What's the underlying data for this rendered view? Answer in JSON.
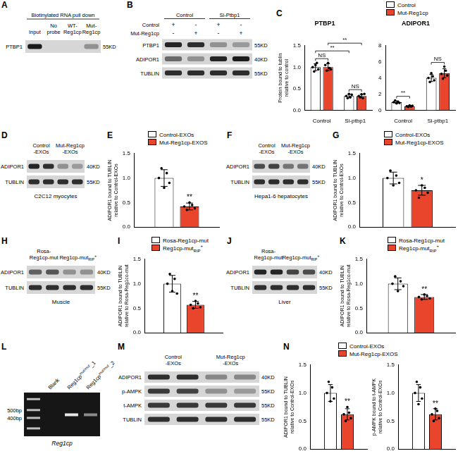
{
  "blots": [
    {
      "panel": "A",
      "title": "Biotinylated RNA pull down",
      "groups": [
        {
          "label": "Input",
          "lanes": 1
        },
        {
          "label": [
            "No",
            "probe"
          ],
          "lanes": 1
        },
        {
          "label": [
            "WT-",
            "Reg1cp"
          ],
          "lanes": 1
        },
        {
          "label": [
            "Mut-",
            "Reg1cp"
          ],
          "lanes": 1
        }
      ],
      "rows": [
        {
          "name": "PTBP1",
          "size": "55KD",
          "signal": [
            0.95,
            0,
            0,
            0.35
          ]
        }
      ]
    },
    {
      "panel": "B",
      "groups": [
        {
          "label": "Control",
          "lanes": 2
        },
        {
          "label": "Si-Ptbp1",
          "lanes": 2
        }
      ],
      "treatments": [
        {
          "name": "Control",
          "marks": [
            "+",
            "-",
            "+",
            "-"
          ]
        },
        {
          "name": "Mut-Reg1cp",
          "marks": [
            "-",
            "+",
            "-",
            "+"
          ]
        }
      ],
      "rows": [
        {
          "name": "PTBP1",
          "size": "55KD",
          "signal": [
            0.9,
            0.85,
            0.35,
            0.3
          ]
        },
        {
          "name": "ADIPOR1",
          "size": "40KD",
          "signal": [
            0.55,
            0.35,
            0.9,
            0.95
          ]
        },
        {
          "name": "TUBLIN",
          "size": "55KD",
          "signal": [
            0.85,
            0.85,
            0.85,
            0.85
          ]
        }
      ]
    },
    {
      "panel": "D",
      "caption": "C2C12 myocytes",
      "groups": [
        {
          "label": [
            "Control",
            "-EXOs"
          ],
          "lanes": 2
        },
        {
          "label": [
            "Mut-Reg1cp",
            "-EXOs"
          ],
          "lanes": 2
        }
      ],
      "rows": [
        {
          "name": "ADIPOR1",
          "size": "40KD",
          "signal": [
            0.9,
            0.85,
            0.35,
            0.3
          ]
        },
        {
          "name": "TUBLIN",
          "size": "55KD",
          "signal": [
            0.85,
            0.85,
            0.85,
            0.85
          ]
        }
      ]
    },
    {
      "panel": "F",
      "caption": "Hepa1-6 hepatocytes",
      "groups": [
        {
          "label": [
            "Control",
            "-EXOs"
          ],
          "lanes": 2
        },
        {
          "label": [
            "Mut-Reg1cp",
            "-EXOs"
          ],
          "lanes": 2
        }
      ],
      "rows": [
        {
          "name": "ADIPOR1",
          "size": "40KD",
          "signal": [
            0.7,
            0.75,
            0.5,
            0.5
          ]
        },
        {
          "name": "TUBLIN",
          "size": "55KD",
          "signal": [
            0.85,
            0.85,
            0.85,
            0.85
          ]
        }
      ]
    },
    {
      "panel": "H",
      "caption": "Muscle",
      "groups": [
        {
          "label": [
            "Rosa-",
            "Reg1cp-mut"
          ],
          "lanes": 2
        },
        {
          "label": {
            "text": "Reg1cp-mut",
            "sub": "RIP",
            "sup": "+"
          },
          "lanes": 2
        }
      ],
      "rows": [
        {
          "name": "ADIPOR1",
          "size": "40KD",
          "signal": [
            0.6,
            0.65,
            0.35,
            0.35
          ]
        },
        {
          "name": "TUBLIN",
          "size": "55KD",
          "signal": [
            0.85,
            0.85,
            0.85,
            0.85
          ]
        }
      ]
    },
    {
      "panel": "J",
      "caption": "Liver",
      "groups": [
        {
          "label": [
            "Rosa-",
            "Reg1cp-mut"
          ],
          "lanes": 2
        },
        {
          "label": {
            "text": "Reg1cp-mut",
            "sub": "RIP",
            "sup": "+"
          },
          "lanes": 2
        }
      ],
      "rows": [
        {
          "name": "ADIPOR1",
          "size": "40KD",
          "signal": [
            0.9,
            0.9,
            0.75,
            0.7
          ]
        },
        {
          "name": "TUBLIN",
          "size": "55KD",
          "signal": [
            0.85,
            0.85,
            0.85,
            0.85
          ]
        }
      ]
    },
    {
      "panel": "M",
      "groups": [
        {
          "label": [
            "Control",
            "-EXOs"
          ],
          "lanes": 2
        },
        {
          "label": [
            "Mut-Reg1cp",
            "-EXOs"
          ],
          "lanes": 2
        }
      ],
      "rows": [
        {
          "name": "ADIPOR1",
          "size": "40KD",
          "signal": [
            0.85,
            0.85,
            0.4,
            0.4
          ]
        },
        {
          "name": "p-AMPK",
          "size": "55KD",
          "signal": [
            0.8,
            0.75,
            0.35,
            0.3
          ]
        },
        {
          "name": "t-AMPK",
          "size": "55KD",
          "signal": [
            0.8,
            0.8,
            0.8,
            0.8
          ]
        },
        {
          "name": "TUBLIN",
          "size": "55KD",
          "signal": [
            0.85,
            0.85,
            0.85,
            0.85
          ]
        }
      ]
    }
  ],
  "gel": {
    "panel": "L",
    "lanes": [
      "Blank",
      {
        "text": "Reg1cp",
        "sup": "mut/mut",
        "after": "_1"
      },
      {
        "text": "Reg1cp",
        "sup": "mut/mut",
        "after": "_2"
      }
    ],
    "signal": [
      0,
      0.9,
      0.5
    ],
    "ladder": [
      "500bp",
      "400bp"
    ],
    "caption": "Reg1cp"
  },
  "chart_data": [
    {
      "panel": "C",
      "type": "bar",
      "title": "PTBP1",
      "legend": "top right",
      "y_label": [
        "Protein bound to tublin",
        "relative to control"
      ],
      "categories": [
        "Control",
        "Si-ptbp1"
      ],
      "series": [
        {
          "name": "Control",
          "color": "#ffffff",
          "values": [
            1.0,
            0.33
          ],
          "errors": [
            0.08,
            0.04
          ],
          "points": [
            [
              1.0,
              0.9,
              1.05,
              1.1,
              0.95
            ],
            [
              0.33,
              0.28,
              0.38,
              0.3,
              0.36
            ]
          ]
        },
        {
          "name": "Mut-Reg1cp",
          "color": "#e8452c",
          "values": [
            1.0,
            0.33
          ],
          "errors": [
            0.08,
            0.04
          ],
          "points": [
            [
              1.05,
              0.92,
              1.1,
              0.98,
              0.95
            ],
            [
              0.33,
              0.3,
              0.37,
              0.28,
              0.38
            ]
          ]
        }
      ],
      "ylim": [
        0,
        1.5
      ],
      "yticks": [
        {
          "value": 0,
          "label": "0.0"
        },
        {
          "value": 0.5,
          "label": "0.5"
        },
        {
          "value": 1,
          "label": "1.0"
        },
        {
          "value": 1.5,
          "label": "1.5"
        }
      ],
      "annotations": [
        {
          "text": "NS",
          "between": [
            [
              0,
              0
            ],
            [
              0,
              1
            ]
          ]
        },
        {
          "text": "NS",
          "between": [
            [
              1,
              0
            ],
            [
              1,
              1
            ]
          ]
        },
        {
          "text": "**",
          "between": [
            [
              0,
              0
            ],
            [
              1,
              0
            ]
          ]
        },
        {
          "text": "**",
          "between": [
            [
              0,
              1
            ],
            [
              1,
              1
            ]
          ]
        }
      ]
    },
    {
      "type": "bar",
      "title": "ADIPOR1",
      "categories": [
        "Control",
        "Si-ptbp1"
      ],
      "series": [
        {
          "name": "Control",
          "color": "#ffffff",
          "values": [
            1.0,
            4.0
          ],
          "errors": [
            0.15,
            0.45
          ],
          "points": [
            [
              1.0,
              1.2,
              0.85,
              1.05,
              0.9
            ],
            [
              4.0,
              3.5,
              4.6,
              4.2,
              3.7
            ]
          ]
        },
        {
          "name": "Mut-Reg1cp",
          "color": "#e8452c",
          "values": [
            0.5,
            4.6
          ],
          "errors": [
            0.08,
            0.55
          ],
          "points": [
            [
              0.5,
              0.4,
              0.6,
              0.45,
              0.55
            ],
            [
              4.5,
              3.9,
              5.4,
              4.9,
              4.3
            ]
          ]
        }
      ],
      "ylim": [
        0,
        8
      ],
      "yticks": [
        0,
        2,
        4,
        6,
        8
      ],
      "annotations": [
        {
          "text": "**",
          "between": [
            [
              0,
              0
            ],
            [
              0,
              1
            ]
          ]
        },
        {
          "text": "NS",
          "between": [
            [
              1,
              0
            ],
            [
              1,
              1
            ]
          ]
        }
      ]
    },
    {
      "panel": "E",
      "type": "bar",
      "legend": "top right",
      "tick_labels": "y",
      "y_label": [
        "ADIPOR1 bound to TUBLIN",
        "relative to Control-EXOs"
      ],
      "categories": [
        null
      ],
      "series": [
        {
          "name": "Control-EXOs",
          "color": "#ffffff",
          "values": [
            1.0
          ],
          "errors": [
            0.17
          ],
          "points": [
            [
              1.0,
              1.2,
              0.8,
              1.1,
              0.9
            ]
          ]
        },
        {
          "name": "Mut-Reg1cp-EXOS",
          "color": "#e8452c",
          "values": [
            0.42
          ],
          "errors": [
            0.07
          ],
          "points": [
            [
              0.42,
              0.35,
              0.5,
              0.45,
              0.38
            ]
          ]
        }
      ],
      "ylim": [
        0,
        1.5
      ],
      "yticks": [
        {
          "value": 0,
          "label": "0.0"
        },
        {
          "value": 0.5,
          "label": "0.5"
        },
        {
          "value": 1,
          "label": "1.0"
        },
        {
          "value": 1.5,
          "label": "1.5"
        }
      ],
      "annotations": [
        {
          "text": "**",
          "over": [
            0,
            1
          ]
        }
      ]
    },
    {
      "panel": "G",
      "type": "bar",
      "legend": "top right",
      "tick_labels": "y",
      "y_label": [
        "ADIPOR1 bound to TUBLIN",
        "relative to Control-EXOs"
      ],
      "categories": [
        null
      ],
      "series": [
        {
          "name": "Control-EXOs",
          "color": "#ffffff",
          "values": [
            1.0
          ],
          "errors": [
            0.12
          ],
          "points": [
            [
              1.0,
              1.15,
              0.85,
              1.05,
              0.9
            ]
          ]
        },
        {
          "name": "Mut-Reg1cp-EXOS",
          "color": "#e8452c",
          "values": [
            0.75
          ],
          "errors": [
            0.1
          ],
          "points": [
            [
              0.75,
              0.6,
              0.85,
              0.8,
              0.7
            ]
          ]
        }
      ],
      "ylim": [
        0,
        1.5
      ],
      "yticks": [
        {
          "value": 0,
          "label": "0.0"
        },
        {
          "value": 0.5,
          "label": "0.5"
        },
        {
          "value": 1,
          "label": "1.0"
        },
        {
          "value": 1.5,
          "label": "1.5"
        }
      ],
      "annotations": [
        {
          "text": "*",
          "over": [
            0,
            1
          ]
        }
      ]
    },
    {
      "panel": "I",
      "type": "bar",
      "legend": "top right",
      "tick_labels": "y",
      "y_label": [
        "ADIPOR1 bound to TUBLIN",
        "relative to Rosa-Reg1co-mut"
      ],
      "categories": [
        null
      ],
      "series": [
        {
          "name": "Rosa-Reg1cp-mut",
          "color": "#ffffff",
          "values": [
            1.0
          ],
          "errors": [
            0.17
          ],
          "points": [
            [
              1.0,
              1.2,
              0.85,
              1.1,
              0.8
            ]
          ]
        },
        {
          "name": {
            "text": "Reg1cp-mut",
            "sub": "RIP",
            "sup": "+"
          },
          "color": "#e8452c",
          "values": [
            0.57
          ],
          "errors": [
            0.07
          ],
          "points": [
            [
              0.57,
              0.5,
              0.65,
              0.6,
              0.52
            ]
          ]
        }
      ],
      "ylim": [
        0,
        1.5
      ],
      "yticks": [
        {
          "value": 0,
          "label": "0.0"
        },
        {
          "value": 0.5,
          "label": "0.5"
        },
        {
          "value": 1,
          "label": "1.0"
        },
        {
          "value": 1.5,
          "label": "1.5"
        }
      ],
      "annotations": [
        {
          "text": "**",
          "over": [
            0,
            1
          ]
        }
      ]
    },
    {
      "panel": "K",
      "type": "bar",
      "legend": "top right",
      "tick_labels": "y",
      "y_label": [
        "ADIPOR1 bound to TUBLIN",
        "relative to Rosa-Reg1co-mut"
      ],
      "categories": [
        null
      ],
      "series": [
        {
          "name": "Rosa-Reg1cp-mut",
          "color": "#ffffff",
          "values": [
            1.0
          ],
          "errors": [
            0.12
          ],
          "points": [
            [
              1.0,
              1.15,
              0.85,
              1.05,
              0.95
            ]
          ]
        },
        {
          "name": {
            "text": "Reg1cp-mut",
            "sub": "RIP",
            "sup": "+"
          },
          "color": "#e8452c",
          "values": [
            0.73
          ],
          "errors": [
            0.05
          ],
          "points": [
            [
              0.73,
              0.68,
              0.78,
              0.75,
              0.7
            ]
          ]
        }
      ],
      "ylim": [
        0,
        1.5
      ],
      "yticks": [
        {
          "value": 0,
          "label": "0.0"
        },
        {
          "value": 0.5,
          "label": "0.5"
        },
        {
          "value": 1,
          "label": "1.0"
        },
        {
          "value": 1.5,
          "label": "1.5"
        }
      ],
      "annotations": [
        {
          "text": "**",
          "over": [
            0,
            1
          ]
        }
      ]
    },
    {
      "panel": "N",
      "type": "bar",
      "legend": "top right",
      "tick_labels": "y",
      "y_label": [
        "ADIPOR1 bound to TUBLIN",
        "relative to Control-EXOs"
      ],
      "categories": [
        null
      ],
      "series": [
        {
          "name": "Control-EXOs",
          "color": "#ffffff",
          "values": [
            1.0
          ],
          "errors": [
            0.15
          ],
          "points": [
            [
              1.0,
              1.2,
              0.85,
              1.1,
              0.9
            ]
          ]
        },
        {
          "name": "Mut-Reg1cp-EXOS",
          "color": "#e8452c",
          "values": [
            0.62
          ],
          "errors": [
            0.1
          ],
          "points": [
            [
              0.62,
              0.5,
              0.75,
              0.65,
              0.55
            ]
          ]
        }
      ],
      "ylim": [
        0,
        1.5
      ],
      "yticks": [
        {
          "value": 0,
          "label": "0.0"
        },
        {
          "value": 0.5,
          "label": "0.5"
        },
        {
          "value": 1,
          "label": "1.0"
        },
        {
          "value": 1.5,
          "label": "1.5"
        }
      ],
      "annotations": [
        {
          "text": "**",
          "over": [
            0,
            1
          ]
        }
      ]
    },
    {
      "type": "bar",
      "tick_labels": "y",
      "y_label": [
        "p-AMPK bound to t-AMPK",
        "relative to Control-EXOs"
      ],
      "categories": [
        null
      ],
      "series": [
        {
          "name": "Control-EXOs",
          "color": "#ffffff",
          "values": [
            1.0
          ],
          "errors": [
            0.15
          ],
          "points": [
            [
              1.0,
              1.2,
              0.8,
              1.1,
              0.9
            ]
          ]
        },
        {
          "name": "Mut-Reg1cp-EXOS",
          "color": "#e8452c",
          "values": [
            0.62
          ],
          "errors": [
            0.1
          ],
          "points": [
            [
              0.62,
              0.5,
              0.72,
              0.68,
              0.55
            ]
          ]
        }
      ],
      "ylim": [
        0,
        1.5
      ],
      "yticks": [
        {
          "value": 0,
          "label": "0.0"
        },
        {
          "value": 0.5,
          "label": "0.5"
        },
        {
          "value": 1,
          "label": "1.0"
        },
        {
          "value": 1.5,
          "label": "1.5"
        }
      ],
      "annotations": [
        {
          "text": "**",
          "over": [
            0,
            1
          ]
        }
      ]
    }
  ]
}
